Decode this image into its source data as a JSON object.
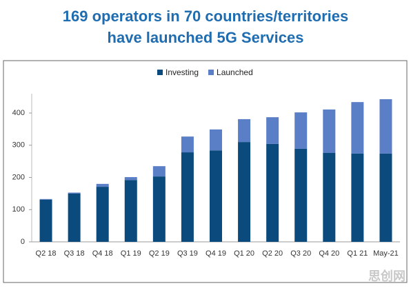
{
  "chart_data": {
    "type": "stacked_bar",
    "title": [
      "169 operators in 70 countries/territories",
      "have launched 5G Services"
    ],
    "categories": [
      "Q2 18",
      "Q3 18",
      "Q4 18",
      "Q1 19",
      "Q2 19",
      "Q3 19",
      "Q4 19",
      "Q1 20",
      "Q2 20",
      "Q3 20",
      "Q4 20",
      "Q1 21",
      "May-21"
    ],
    "series": [
      {
        "name": "Investing",
        "color": "#0b4a7c",
        "values": [
          131,
          150,
          171,
          192,
          203,
          278,
          284,
          310,
          304,
          289,
          276,
          274,
          274
        ]
      },
      {
        "name": "Launched",
        "color": "#5b7fc7",
        "values": [
          2,
          3,
          9,
          9,
          32,
          49,
          65,
          71,
          83,
          113,
          135,
          160,
          169
        ]
      }
    ],
    "ylim": [
      0,
      460
    ],
    "yticks": [
      0,
      100,
      200,
      300,
      400
    ],
    "grid": false,
    "legend": "top",
    "watermark": "思创网"
  }
}
